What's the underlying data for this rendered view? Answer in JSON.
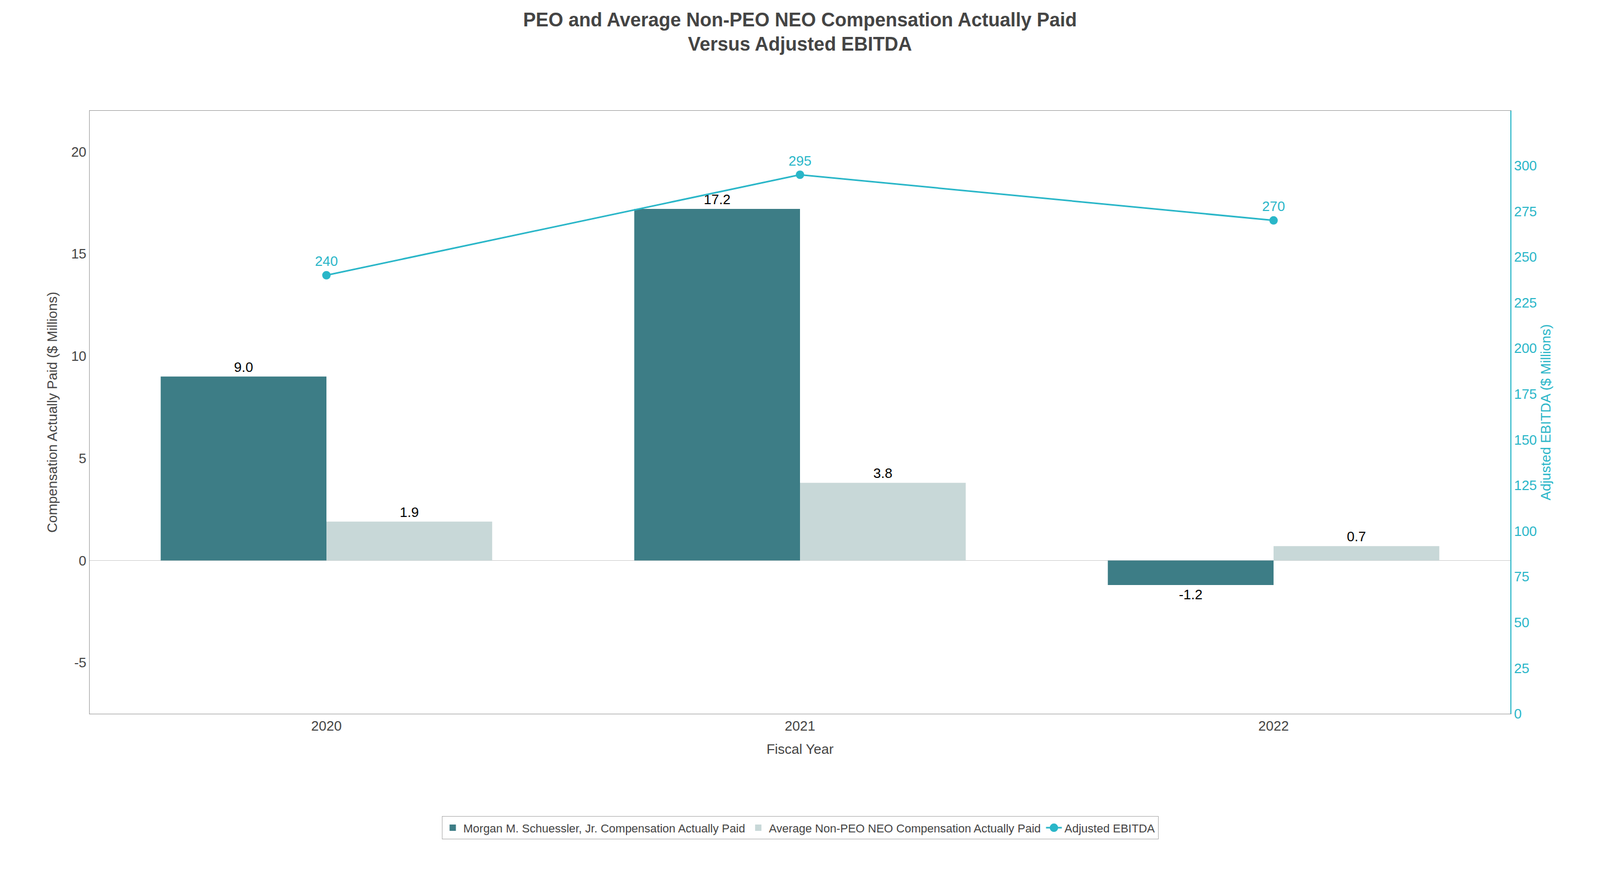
{
  "chart_data": {
    "type": "bar",
    "title": "PEO and Average Non-PEO NEO Compensation Actually Paid",
    "subtitle": "Versus Adjusted EBITDA",
    "x_label": "Fiscal Year",
    "y_label": "Compensation Actually Paid ($ Millions)",
    "y2_label": "Adjusted EBITDA ($ Millions)",
    "categories": [
      "2020",
      "2021",
      "2022"
    ],
    "series": [
      {
        "name": "Morgan M. Schuessler, Jr. Compensation Actually Paid",
        "type": "bar",
        "color": "#3d7d86",
        "values": [
          9.0,
          17.2,
          -1.2
        ],
        "value_labels": [
          "9.0",
          "17.2",
          "-1.2"
        ]
      },
      {
        "name": "Average Non-PEO NEO Compensation Actually Paid",
        "type": "bar",
        "color": "#c8d8d8",
        "values": [
          1.9,
          3.8,
          0.7
        ],
        "value_labels": [
          "1.9",
          "3.8",
          "0.7"
        ]
      },
      {
        "name": "Adjusted EBITDA",
        "type": "line",
        "axis": "y2",
        "color": "#29b6c8",
        "marker": "circle",
        "values": [
          240,
          295,
          270
        ],
        "value_labels": [
          "240",
          "295",
          "270"
        ]
      }
    ],
    "ylim": [
      -7.5,
      22
    ],
    "yticks": [
      -5,
      0,
      5,
      10,
      15,
      20
    ],
    "y2lim": [
      0,
      330
    ],
    "y2ticks": [
      0,
      25,
      50,
      75,
      100,
      125,
      150,
      175,
      200,
      225,
      250,
      275,
      300
    ],
    "data_labels": true,
    "grid": false,
    "legend": "bottom"
  }
}
